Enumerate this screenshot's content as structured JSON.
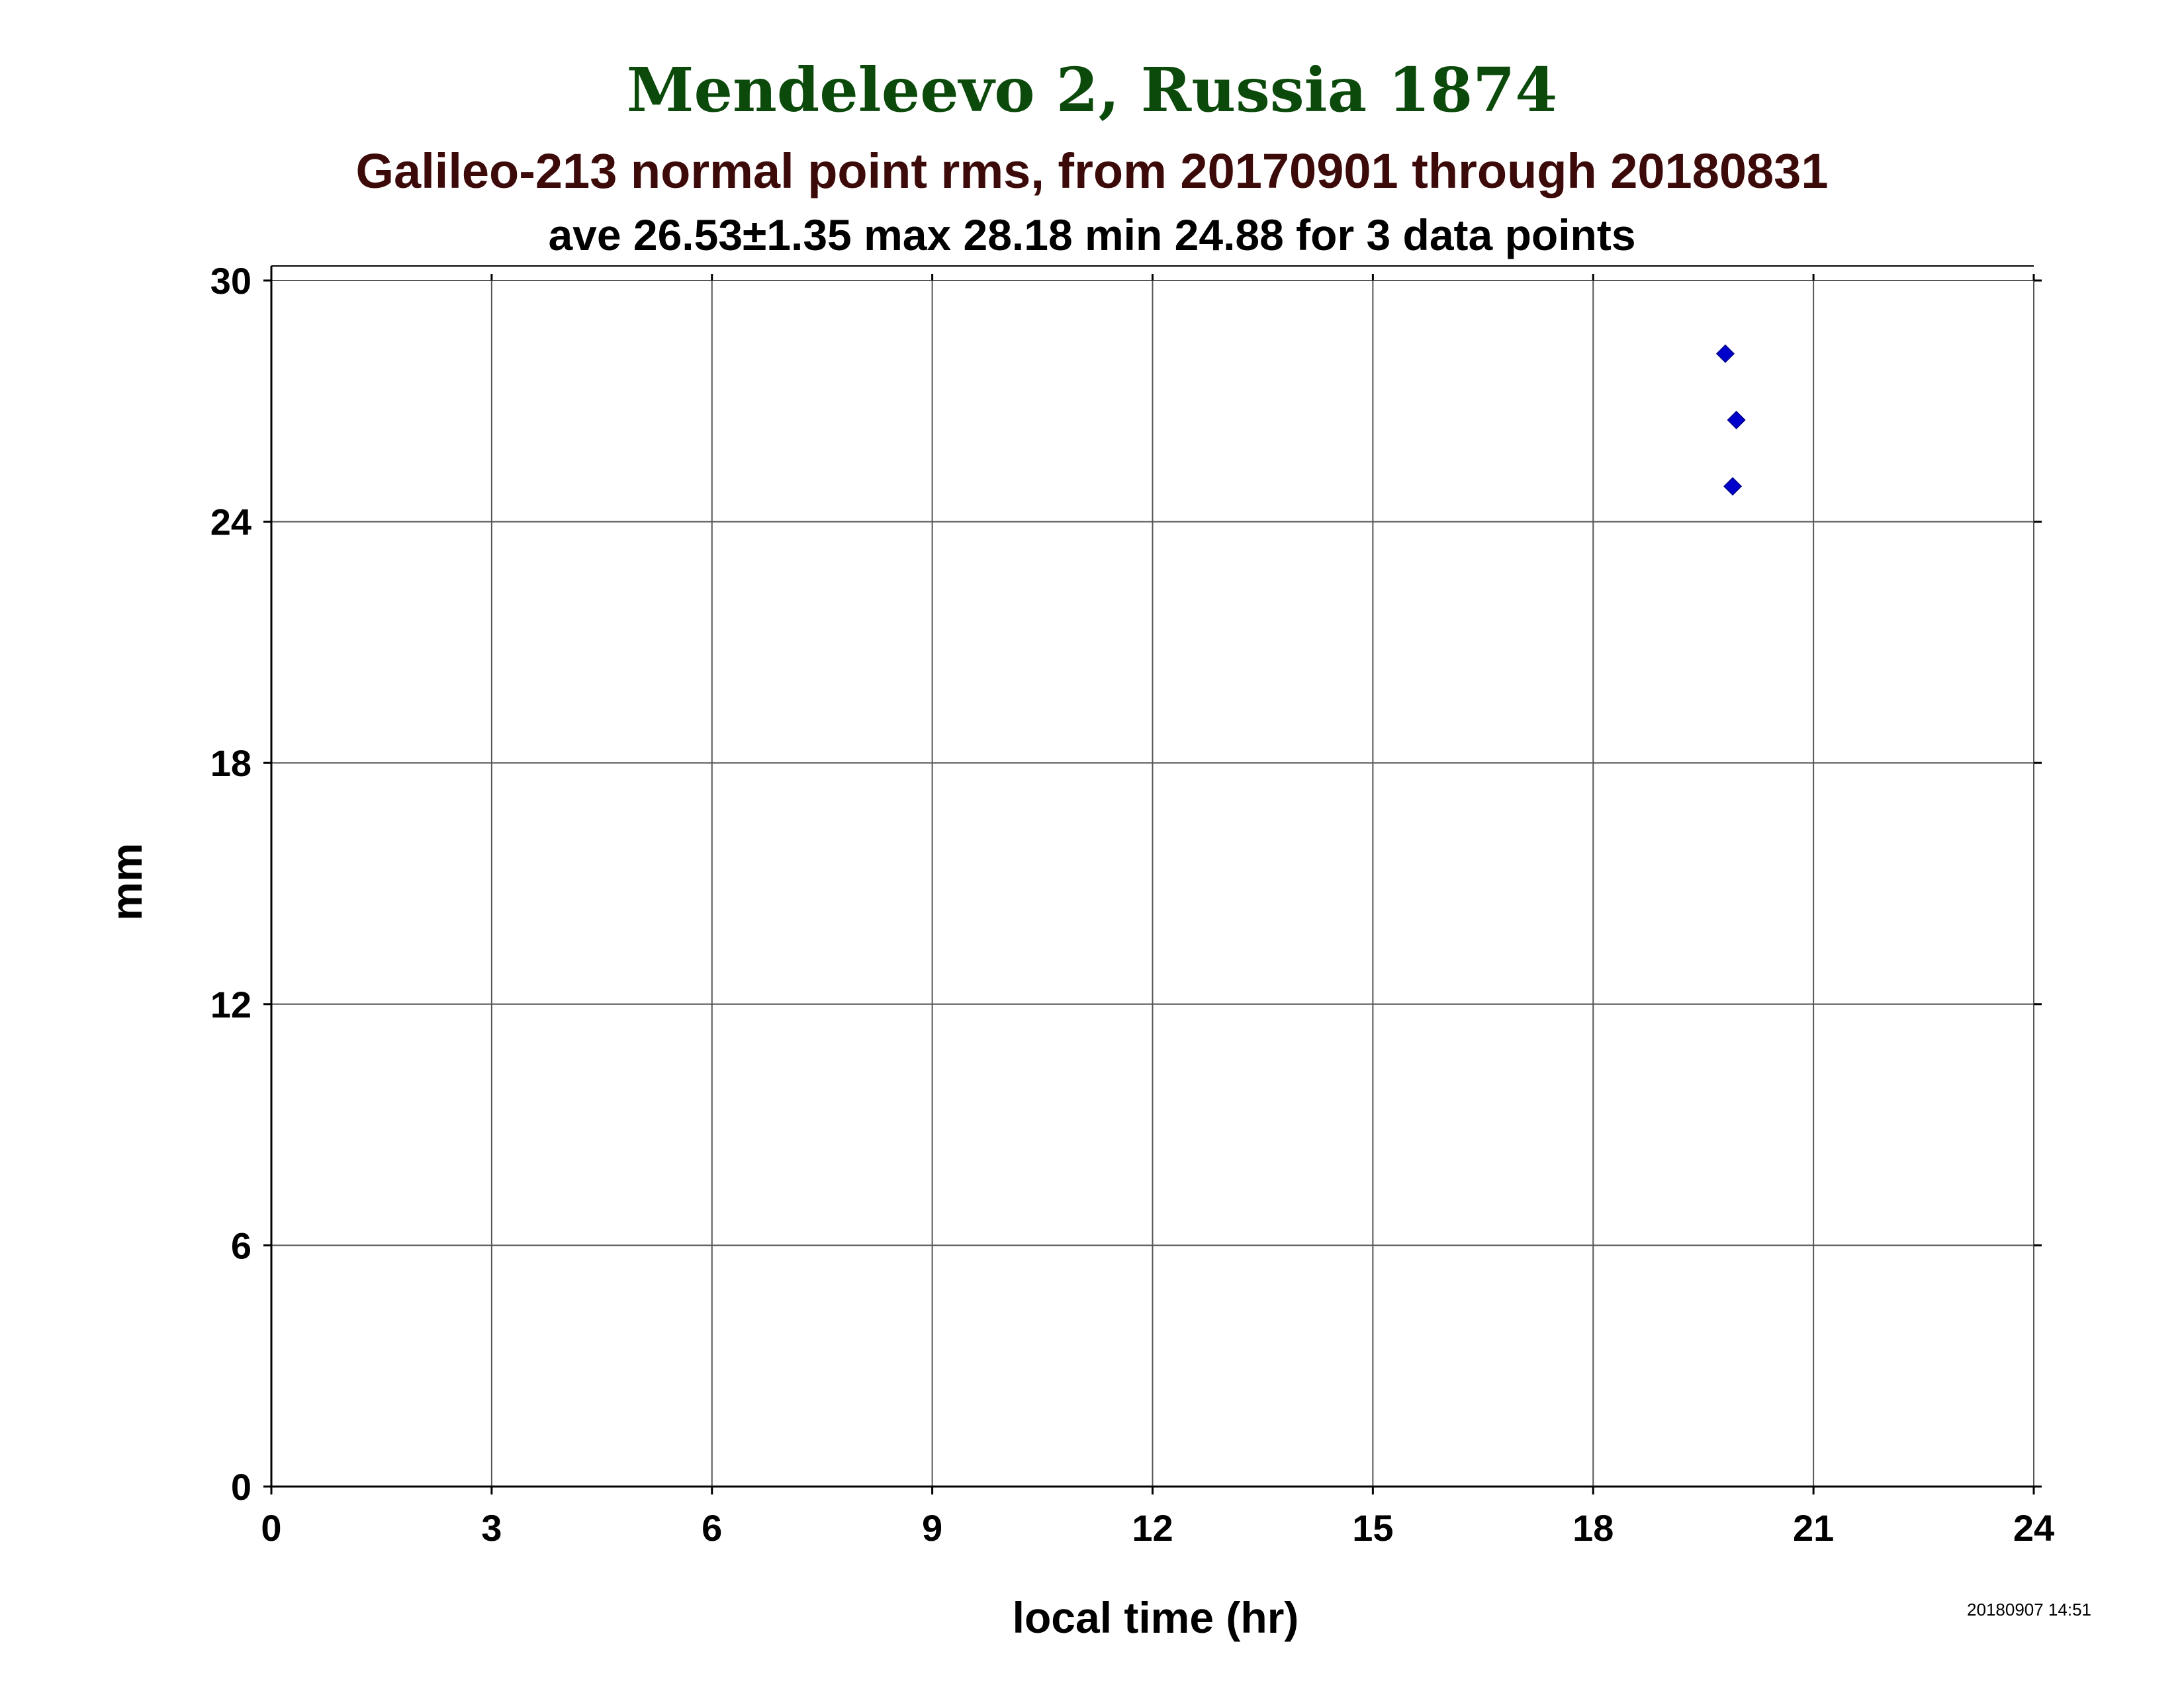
{
  "header": {
    "title": "Mendeleevo 2, Russia 1874",
    "subtitle": "Galileo-213 normal point rms, from 20170901 through 20180831",
    "stats": "ave 26.53±1.35 max 28.18 min 24.88 for 3 data points"
  },
  "footer": {
    "timestamp": "20180907 14:51"
  },
  "colors": {
    "title": "#0b4a0b",
    "subtitle": "#3d0a0a",
    "marker": "#0000cc",
    "grid": "#555555"
  },
  "chart_data": {
    "type": "scatter",
    "title": "Mendeleevo 2, Russia 1874",
    "xlabel": "local time (hr)",
    "ylabel": "mm",
    "xlim": [
      0,
      24
    ],
    "ylim": [
      0,
      30
    ],
    "xticks": [
      0,
      3,
      6,
      9,
      12,
      15,
      18,
      21,
      24
    ],
    "yticks": [
      0,
      6,
      12,
      18,
      24,
      30
    ],
    "grid": true,
    "marker": "diamond",
    "points": [
      {
        "x": 19.8,
        "y": 28.18
      },
      {
        "x": 19.95,
        "y": 26.53
      },
      {
        "x": 19.9,
        "y": 24.88
      }
    ]
  }
}
